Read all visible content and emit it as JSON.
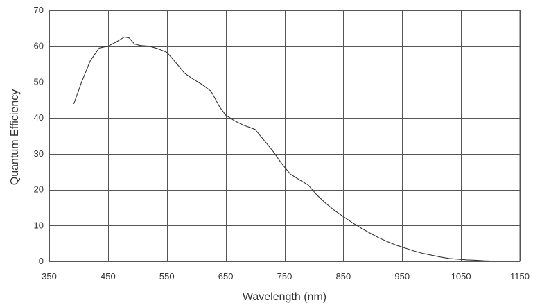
{
  "chart_data": {
    "type": "line",
    "title": "",
    "xlabel": "Wavelength (nm)",
    "ylabel": "Quantum Efficiency",
    "xlim": [
      350,
      1150
    ],
    "ylim": [
      0,
      70
    ],
    "x_ticks": [
      350,
      450,
      550,
      650,
      750,
      850,
      950,
      1050,
      1150
    ],
    "y_ticks": [
      0,
      10,
      20,
      30,
      40,
      50,
      60,
      70
    ],
    "x_tick_labels": [
      "350",
      "450",
      "550",
      "650",
      "750",
      "850",
      "950",
      "1050",
      "1150"
    ],
    "y_tick_labels": [
      "0",
      "10",
      "20",
      "30",
      "40",
      "50",
      "60",
      "70"
    ],
    "grid": true,
    "legend": "none",
    "colors": {
      "line": "#333333",
      "grid": "#555555",
      "text": "#333333"
    },
    "series": [
      {
        "x": [
          392,
          405,
          420,
          435,
          450,
          465,
          478,
          486,
          495,
          505,
          520,
          535,
          550,
          565,
          580,
          595,
          610,
          625,
          640,
          650,
          665,
          680,
          700,
          715,
          730,
          745,
          760,
          775,
          790,
          805,
          820,
          835,
          850,
          865,
          880,
          895,
          910,
          925,
          940,
          955,
          970,
          985,
          1000,
          1015,
          1030,
          1045,
          1060,
          1075,
          1090,
          1100
        ],
        "y": [
          44,
          50,
          56,
          59.5,
          60,
          61.3,
          62.6,
          62.3,
          60.6,
          60.2,
          60,
          59.3,
          58.3,
          55.5,
          52.5,
          50.8,
          49.3,
          47.5,
          43,
          40.8,
          39.2,
          38,
          36.8,
          33.8,
          30.8,
          27.3,
          24.3,
          22.8,
          21.3,
          18.5,
          16.2,
          14.2,
          12.5,
          10.8,
          9.3,
          7.9,
          6.6,
          5.5,
          4.5,
          3.7,
          2.9,
          2.2,
          1.7,
          1.2,
          0.8,
          0.6,
          0.4,
          0.3,
          0.15,
          0.1
        ]
      }
    ]
  }
}
